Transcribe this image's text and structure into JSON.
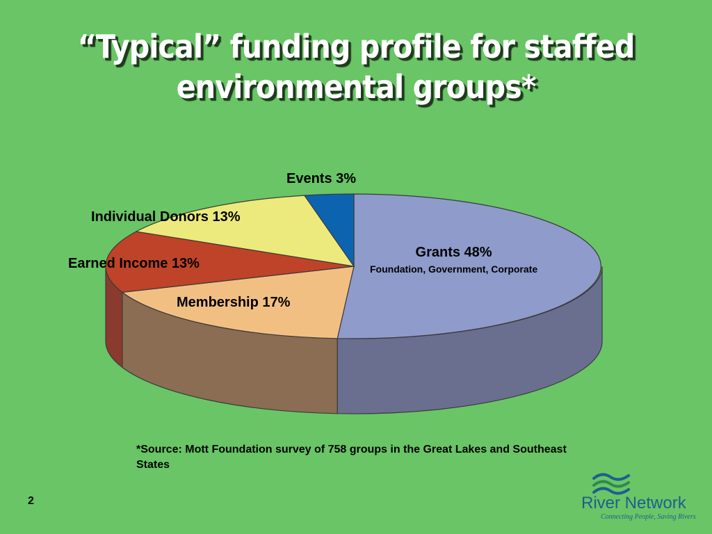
{
  "slide": {
    "title_line1": "“Typical” funding profile for staffed",
    "title_line2": "environmental groups*",
    "source_note": "*Source:  Mott Foundation survey of 758 groups in the Great Lakes and Southeast States",
    "page_number": "2"
  },
  "logo": {
    "name": "River Network",
    "tagline": "Connecting People, Saving Rivers",
    "icon": "wave-icon"
  },
  "chart_data": {
    "type": "pie",
    "title": "“Typical” funding profile for staffed environmental groups*",
    "style": "3d",
    "slices": [
      {
        "name": "Grants",
        "value": 48,
        "label": "Grants  48%",
        "sublabel": "Foundation, Government, Corporate",
        "color": "#8e9bcb",
        "side_color": "#6a6f8f"
      },
      {
        "name": "Membership",
        "value": 17,
        "label": "Membership  17%",
        "sublabel": "",
        "color": "#f2bf83",
        "side_color": "#8a6d52"
      },
      {
        "name": "Earned Income",
        "value": 13,
        "label": "Earned Income  13%",
        "sublabel": "",
        "color": "#bf4329",
        "side_color": "#8b3a2e"
      },
      {
        "name": "Individual Donors",
        "value": 13,
        "label": "Individual Donors  13%",
        "sublabel": "",
        "color": "#ecea7c",
        "side_color": "#a8a65a"
      },
      {
        "name": "Events",
        "value": 3,
        "label": "Events  3%",
        "sublabel": "",
        "color": "#0c64b0",
        "side_color": "#0a4a80"
      }
    ]
  }
}
